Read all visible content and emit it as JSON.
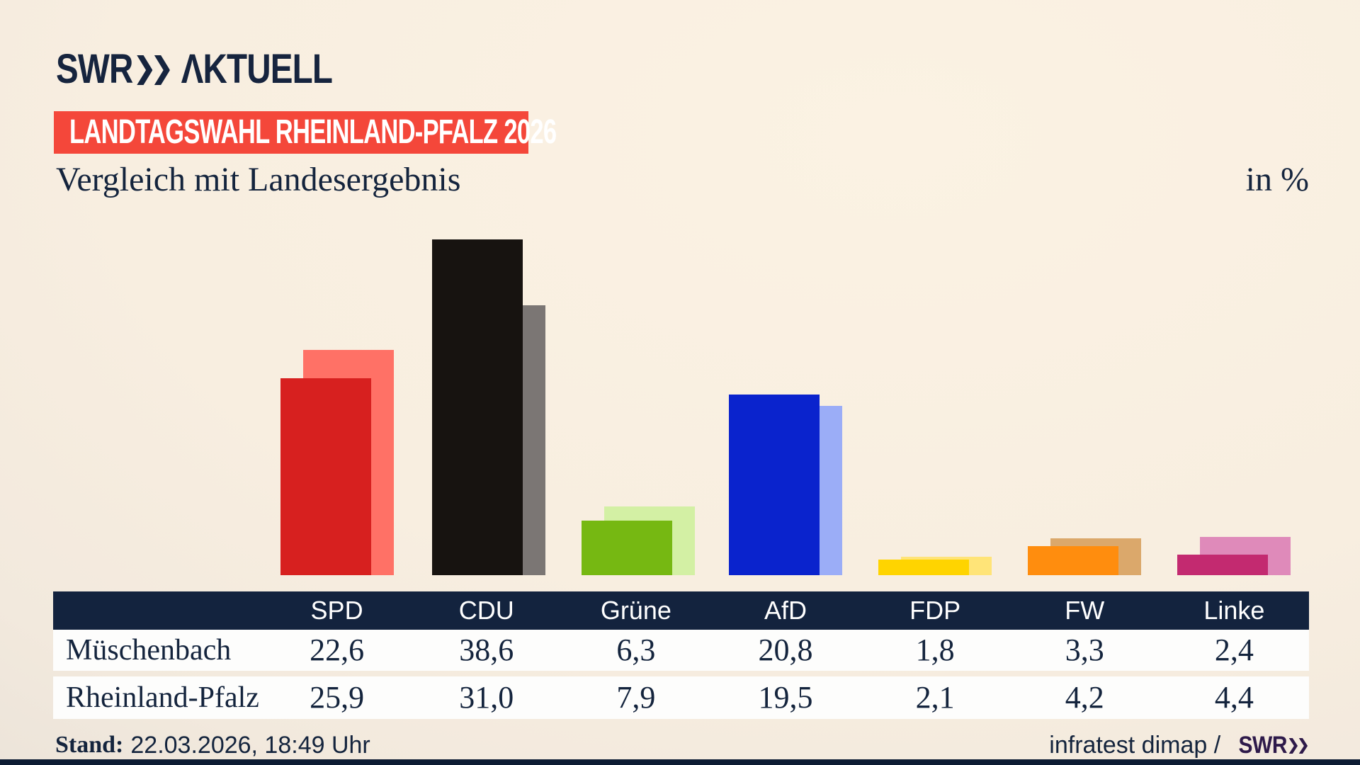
{
  "header": {
    "brand_swr": "SWR",
    "brand_suffix": "ΛKTUELL",
    "badge": "LANDTAGSWAHL RHEINLAND-PFALZ 2026",
    "title": "Vergleich mit Landesergebnis",
    "unit_label": "in %"
  },
  "chart_data": {
    "type": "bar",
    "title": "Vergleich mit Landesergebnis",
    "unit": "%",
    "categories": [
      "SPD",
      "CDU",
      "Grüne",
      "AfD",
      "FDP",
      "FW",
      "Linke"
    ],
    "series": [
      {
        "name": "Müschenbach",
        "values": [
          22.6,
          38.6,
          6.3,
          20.8,
          1.8,
          3.3,
          2.4
        ]
      },
      {
        "name": "Rheinland-Pfalz",
        "values": [
          25.9,
          31.0,
          7.9,
          19.5,
          2.1,
          4.2,
          4.4
        ]
      }
    ],
    "ylim": [
      0,
      40
    ],
    "grid": false,
    "legend_position": "table-below",
    "bar_colors_front": [
      "#d7201f",
      "#171310",
      "#76b812",
      "#0a23cd",
      "#ffd400",
      "#ff8d0e",
      "#c32a70"
    ],
    "bar_colors_back": [
      "#ff7166",
      "#7b7674",
      "#d3f0a4",
      "#9badf7",
      "#ffe478",
      "#dba86b",
      "#df8aba"
    ]
  },
  "table": {
    "column_headers": [
      "SPD",
      "CDU",
      "Grüne",
      "AfD",
      "FDP",
      "FW",
      "Linke"
    ],
    "rows": [
      {
        "label": "Müschenbach",
        "values": [
          "22,6",
          "38,6",
          "6,3",
          "20,8",
          "1,8",
          "3,3",
          "2,4"
        ]
      },
      {
        "label": "Rheinland-Pfalz",
        "values": [
          "25,9",
          "31,0",
          "7,9",
          "19,5",
          "2,1",
          "4,2",
          "4,4"
        ]
      }
    ]
  },
  "footer": {
    "stand_label": "Stand:",
    "stand_value": "22.03.2026, 18:49 Uhr",
    "source_prefix": "infratest dimap /",
    "source_brand": "SWR"
  },
  "colors": {
    "background_light": "#fbf2e3",
    "background_corner": "#d4d0ca",
    "badge_red": "#f4473a",
    "navy_text": "#14243d",
    "table_header_navy": "#13233e",
    "row_white": "#fdfdfc",
    "brand_purple": "#2e1a4a",
    "bottom_strip_navy": "#0d1c33"
  }
}
